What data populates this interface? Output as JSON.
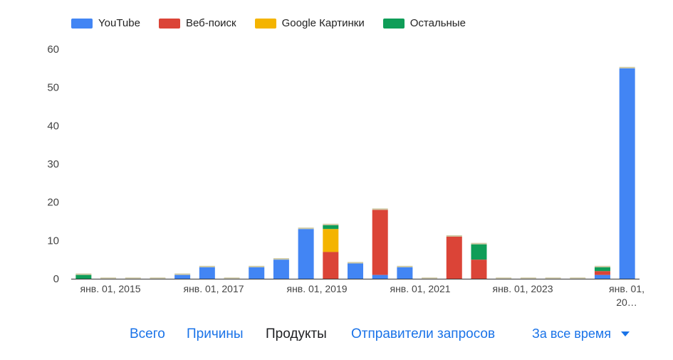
{
  "chart_data": {
    "type": "bar",
    "stacked": true,
    "colors": {
      "YouTube": "#4285f4",
      "Веб-поиск": "#db4437",
      "Google Картинки": "#f4b400",
      "Остальные": "#0f9d58"
    },
    "legend": [
      "YouTube",
      "Веб-поиск",
      "Google Картинки",
      "Остальные"
    ],
    "legend_position": "top-left",
    "ylim": [
      0,
      60
    ],
    "yticks": [
      0,
      10,
      20,
      30,
      40,
      50,
      60
    ],
    "grid": false,
    "x_tick_labels": [
      "янв. 01, 2015",
      "янв. 01, 2017",
      "янв. 01, 2019",
      "янв. 01, 2021",
      "янв. 01, 2023",
      "янв. 01, 20…"
    ],
    "categories": [
      "2014-07",
      "2015-01",
      "2015-07",
      "2016-01",
      "2016-07",
      "2017-01",
      "2017-07",
      "2018-01",
      "2018-07",
      "2019-01",
      "2019-07",
      "2020-01",
      "2020-07",
      "2021-01",
      "2021-07",
      "2022-01",
      "2022-07",
      "2023-01",
      "2023-07",
      "2024-01",
      "2024-07",
      "2025-01",
      "2025-07"
    ],
    "series": [
      {
        "name": "YouTube",
        "values": [
          0,
          0,
          0,
          0,
          1,
          3,
          0,
          3,
          5,
          13,
          0,
          4,
          1,
          3,
          0,
          0,
          0,
          0,
          0,
          0,
          0,
          1,
          55
        ]
      },
      {
        "name": "Веб-поиск",
        "values": [
          0,
          0,
          0,
          0,
          0,
          0,
          0,
          0,
          0,
          0,
          7,
          0,
          17,
          0,
          0,
          11,
          5,
          0,
          0,
          0,
          0,
          1,
          0
        ]
      },
      {
        "name": "Google Картинки",
        "values": [
          0,
          0,
          0,
          0,
          0,
          0,
          0,
          0,
          0,
          0,
          6,
          0,
          0,
          0,
          0,
          0,
          0,
          0,
          0,
          0,
          0,
          0,
          0
        ]
      },
      {
        "name": "Остальные",
        "values": [
          1,
          0,
          0,
          0,
          0,
          0,
          0,
          0,
          0,
          0,
          1,
          0,
          0,
          0,
          0,
          0,
          4,
          0,
          0,
          0,
          0,
          1,
          0
        ]
      }
    ]
  },
  "tabs": [
    {
      "label": "Всего",
      "active": false
    },
    {
      "label": "Причины",
      "active": false
    },
    {
      "label": "Продукты",
      "active": true
    },
    {
      "label": "Отправители запросов",
      "active": false
    }
  ],
  "period": {
    "label": "За все время"
  }
}
